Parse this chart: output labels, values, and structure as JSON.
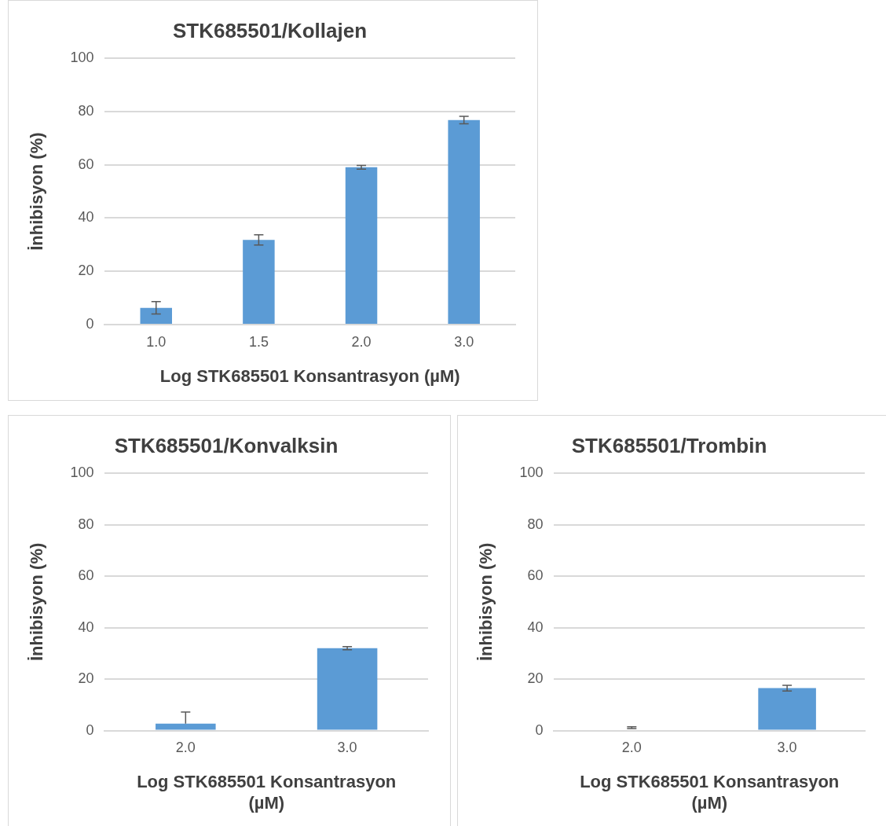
{
  "chart_data": [
    {
      "type": "bar",
      "title": "STK685501/Kollajen",
      "xlabel": "Log STK685501 Konsantrasyon (µM)",
      "ylabel": "İnhibisyon (%)",
      "categories": [
        "1.0",
        "1.5",
        "2.0",
        "3.0"
      ],
      "values": [
        6.3,
        31.8,
        59.1,
        76.8
      ],
      "errors": [
        2.3,
        1.9,
        0.7,
        1.4
      ],
      "color": "#5b9bd5",
      "ylim": [
        0,
        100
      ],
      "yticks": [
        0,
        20,
        40,
        60,
        80,
        100
      ],
      "grid": "y",
      "legend": false
    },
    {
      "type": "bar",
      "title": "STK685501/Konvalksin",
      "xlabel": "Log STK685501 Konsantrasyon (µM)",
      "ylabel": "İnhibisyon (%)",
      "categories": [
        "2.0",
        "3.0"
      ],
      "values": [
        2.7,
        32.0
      ],
      "errors": [
        [
          2.7,
          7.2
        ],
        0.6
      ],
      "color": "#5b9bd5",
      "ylim": [
        0,
        100
      ],
      "yticks": [
        0,
        20,
        40,
        60,
        80,
        100
      ],
      "grid": "y",
      "legend": false
    },
    {
      "type": "bar",
      "title": "STK685501/Trombin",
      "xlabel": "Log STK685501 Konsantrasyon (µM)",
      "ylabel": "İnhibisyon (%)",
      "categories": [
        "2.0",
        "3.0"
      ],
      "values": [
        0.3,
        16.5
      ],
      "errors": [
        [
          0.8,
          1.5
        ],
        1.1
      ],
      "color": "#5b9bd5",
      "ylim": [
        0,
        100
      ],
      "yticks": [
        0,
        20,
        40,
        60,
        80,
        100
      ],
      "grid": "y",
      "legend": false
    }
  ]
}
